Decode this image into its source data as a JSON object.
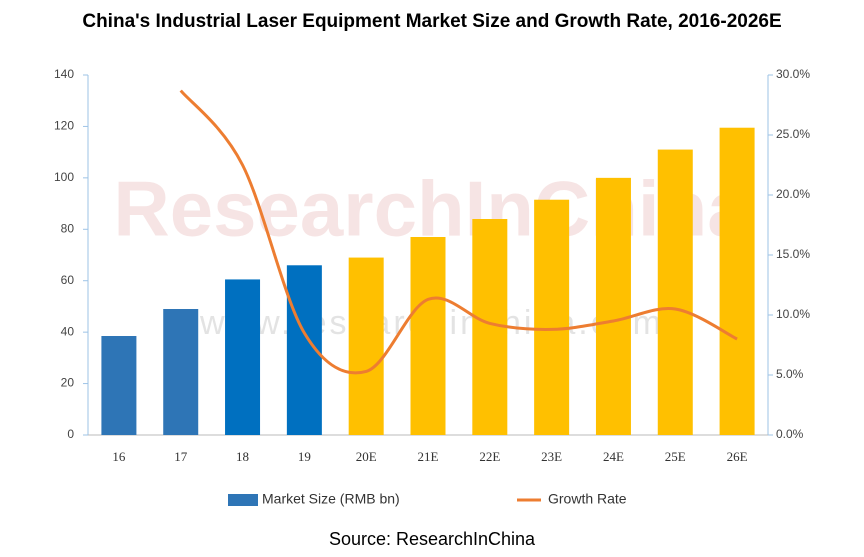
{
  "chart_data": {
    "type": "bar",
    "title": "China's Industrial Laser Equipment Market Size and Growth Rate, 2016-2026E",
    "source": "Source: ResearchInChina",
    "watermark": "ResearchInChina",
    "watermark_url": "www.researchinchina.com",
    "categories": [
      "16",
      "17",
      "18",
      "19",
      "20E",
      "21E",
      "22E",
      "23E",
      "24E",
      "25E",
      "26E"
    ],
    "series": [
      {
        "name": "Market Size (RMB bn)",
        "type": "bar",
        "color": "#2e75b6",
        "colors": [
          "#2e75b6",
          "#2e75b6",
          "#0070c0",
          "#0070c0",
          "#ffc000",
          "#ffc000",
          "#ffc000",
          "#ffc000",
          "#ffc000",
          "#ffc000",
          "#ffc000"
        ],
        "values": [
          38.5,
          49,
          60.5,
          66,
          69,
          77,
          84,
          91.5,
          100,
          111,
          119.5
        ]
      },
      {
        "name": "Growth Rate",
        "type": "line",
        "color": "#ed7d31",
        "axis": "y2",
        "values": [
          null,
          28.7,
          22.5,
          8.5,
          5.3,
          11.3,
          9.3,
          8.8,
          9.5,
          10.5,
          8.0
        ]
      }
    ],
    "ylim": [
      0,
      140
    ],
    "yticks": [
      0,
      20,
      40,
      60,
      80,
      100,
      120,
      140
    ],
    "y2lim": [
      0,
      30
    ],
    "y2ticks": [
      {
        "value": 0,
        "label": "0.0%"
      },
      {
        "value": 5,
        "label": "5.0%"
      },
      {
        "value": 10,
        "label": "10.0%"
      },
      {
        "value": 15,
        "label": "15.0%"
      },
      {
        "value": 20,
        "label": "20.0%"
      },
      {
        "value": 25,
        "label": "25.0%"
      },
      {
        "value": 30,
        "label": "30.0%"
      }
    ],
    "grid": false,
    "legend": "bottom"
  }
}
